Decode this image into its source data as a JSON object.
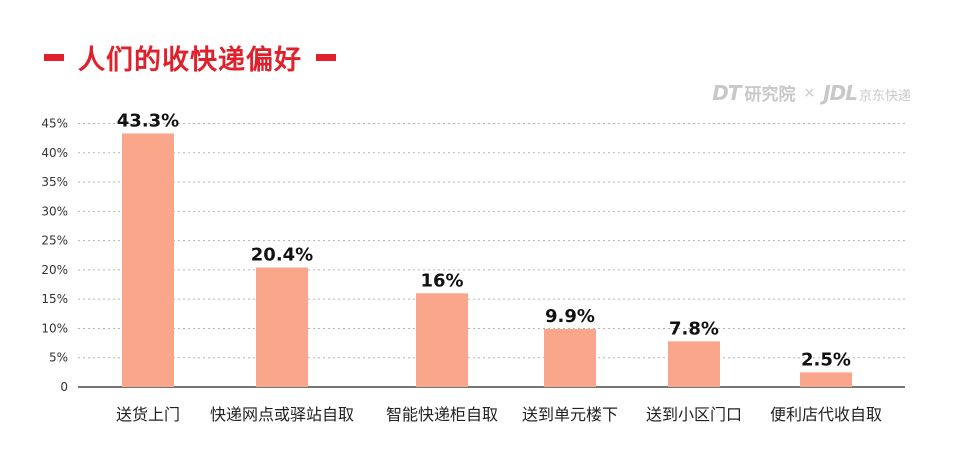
{
  "header": {
    "title": "人们的收快递偏好"
  },
  "brand": {
    "dt": "DT",
    "dt_cn": "研究院",
    "separator": "×",
    "jdl": "JDL",
    "jdl_cn": "京东快递"
  },
  "chart_data": {
    "type": "bar",
    "categories": [
      "送货上门",
      "快递网点或驿站自取",
      "智能快递柜自取",
      "送到单元楼下",
      "送到小区门口",
      "便利店代收自取"
    ],
    "values": [
      43.3,
      20.4,
      16,
      9.9,
      7.8,
      2.5
    ],
    "data_labels": [
      "43.3%",
      "20.4%",
      "16%",
      "9.9%",
      "7.8%",
      "2.5%"
    ],
    "yticks": [
      "0",
      "5%",
      "10%",
      "15%",
      "20%",
      "25%",
      "30%",
      "35%",
      "40%",
      "45%"
    ],
    "ylim": [
      0,
      45
    ],
    "grid": true,
    "bar_color": "#f9a68b",
    "title_color": "#e0202a"
  }
}
